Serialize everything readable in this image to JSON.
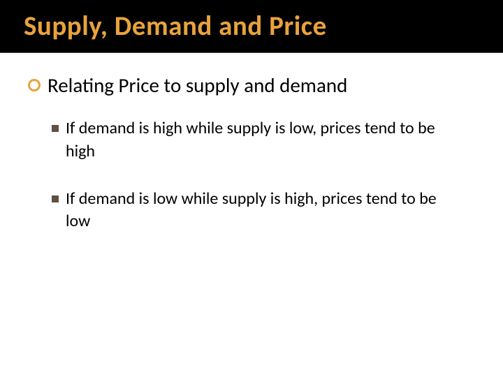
{
  "slide": {
    "title": "Supply, Demand and Price",
    "title_color": "#e8a33d",
    "title_band_bg": "#000000",
    "body_text_color": "#000000",
    "background_color": "#ffffff",
    "bullet_ring_color": "#e8a33d",
    "bullet_square_color": "#605040",
    "title_fontsize": 39,
    "level1_fontsize": 29,
    "level2_fontsize": 24,
    "items": [
      {
        "type": "level1",
        "text": "Relating Price to supply and demand"
      },
      {
        "type": "level2",
        "text": "If demand is high while supply is low, prices tend to be high"
      },
      {
        "type": "level2",
        "text": "If demand is low while supply is high, prices tend to be low"
      }
    ]
  }
}
